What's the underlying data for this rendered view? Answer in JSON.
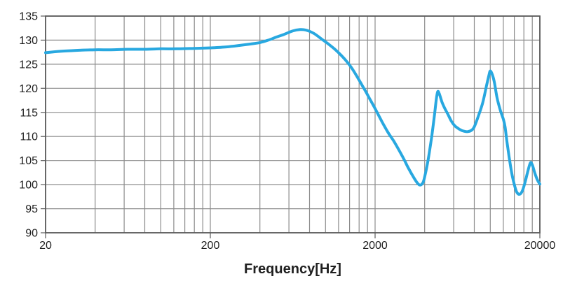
{
  "chart_data": {
    "type": "line",
    "title": "",
    "xlabel": "Frequency[Hz]",
    "ylabel": "",
    "x_scale": "log",
    "xlim": [
      20,
      20000
    ],
    "ylim": [
      90,
      135
    ],
    "grid": true,
    "legend": "none",
    "x_tick_labels": [
      "20",
      "200",
      "2000",
      "20000"
    ],
    "x_tick_values": [
      20,
      200,
      2000,
      20000
    ],
    "y_ticks": [
      135,
      130,
      125,
      120,
      115,
      110,
      105,
      100,
      95,
      90
    ],
    "y_gridlines": [
      90,
      95,
      100,
      105,
      110,
      115,
      120,
      125,
      130,
      135
    ],
    "x_gridlines": [
      20,
      40,
      60,
      80,
      100,
      120,
      140,
      160,
      180,
      200,
      400,
      600,
      800,
      1000,
      1200,
      1400,
      1600,
      1800,
      2000,
      4000,
      6000,
      8000,
      10000,
      12000,
      14000,
      16000,
      18000,
      20000
    ],
    "series": [
      {
        "name": "frequency-response",
        "color": "#28a8e0",
        "points": [
          [
            20,
            127.4
          ],
          [
            25,
            127.7
          ],
          [
            32,
            127.9
          ],
          [
            40,
            128.0
          ],
          [
            50,
            128.0
          ],
          [
            63,
            128.1
          ],
          [
            80,
            128.1
          ],
          [
            100,
            128.2
          ],
          [
            125,
            128.2
          ],
          [
            160,
            128.3
          ],
          [
            200,
            128.4
          ],
          [
            250,
            128.6
          ],
          [
            300,
            128.9
          ],
          [
            350,
            129.2
          ],
          [
            400,
            129.5
          ],
          [
            450,
            130.0
          ],
          [
            500,
            130.6
          ],
          [
            560,
            131.2
          ],
          [
            630,
            131.9
          ],
          [
            700,
            132.2
          ],
          [
            760,
            132.1
          ],
          [
            850,
            131.4
          ],
          [
            950,
            130.2
          ],
          [
            1050,
            129.1
          ],
          [
            1150,
            128.0
          ],
          [
            1250,
            126.8
          ],
          [
            1350,
            125.5
          ],
          [
            1450,
            124.1
          ],
          [
            1550,
            122.5
          ],
          [
            1650,
            120.9
          ],
          [
            1750,
            119.4
          ],
          [
            1850,
            117.9
          ],
          [
            2000,
            115.8
          ],
          [
            2200,
            113.1
          ],
          [
            2400,
            110.8
          ],
          [
            2600,
            109.0
          ],
          [
            2800,
            107.1
          ],
          [
            3000,
            105.2
          ],
          [
            3200,
            103.3
          ],
          [
            3400,
            101.7
          ],
          [
            3600,
            100.4
          ],
          [
            3750,
            99.9
          ],
          [
            3900,
            100.4
          ],
          [
            4000,
            101.6
          ],
          [
            4200,
            105.2
          ],
          [
            4400,
            109.7
          ],
          [
            4570,
            114.0
          ],
          [
            4700,
            117.6
          ],
          [
            4800,
            119.3
          ],
          [
            4900,
            118.9
          ],
          [
            5100,
            117.1
          ],
          [
            5300,
            115.8
          ],
          [
            5500,
            114.8
          ],
          [
            5800,
            113.2
          ],
          [
            6100,
            112.2
          ],
          [
            6500,
            111.5
          ],
          [
            6900,
            111.1
          ],
          [
            7300,
            111.0
          ],
          [
            7700,
            111.3
          ],
          [
            8000,
            112.0
          ],
          [
            8500,
            114.4
          ],
          [
            9000,
            117.0
          ],
          [
            9500,
            120.6
          ],
          [
            9800,
            122.6
          ],
          [
            10000,
            123.6
          ],
          [
            10300,
            122.8
          ],
          [
            10600,
            121.2
          ],
          [
            11000,
            118.0
          ],
          [
            11500,
            115.5
          ],
          [
            12000,
            113.6
          ],
          [
            12300,
            112.0
          ],
          [
            12600,
            109.2
          ],
          [
            13000,
            105.9
          ],
          [
            13500,
            102.4
          ],
          [
            14000,
            100.0
          ],
          [
            14500,
            98.4
          ],
          [
            15100,
            98.0
          ],
          [
            15700,
            98.8
          ],
          [
            16300,
            100.6
          ],
          [
            16800,
            102.4
          ],
          [
            17500,
            104.5
          ],
          [
            18000,
            104.1
          ],
          [
            18600,
            102.5
          ],
          [
            19300,
            101.0
          ],
          [
            20000,
            100.1
          ]
        ]
      }
    ]
  },
  "colors": {
    "curve": "#28a8e0",
    "grid": "#8c8c8c",
    "axis": "#5a5a5a",
    "text": "#1f1f1f",
    "background": "#ffffff"
  }
}
